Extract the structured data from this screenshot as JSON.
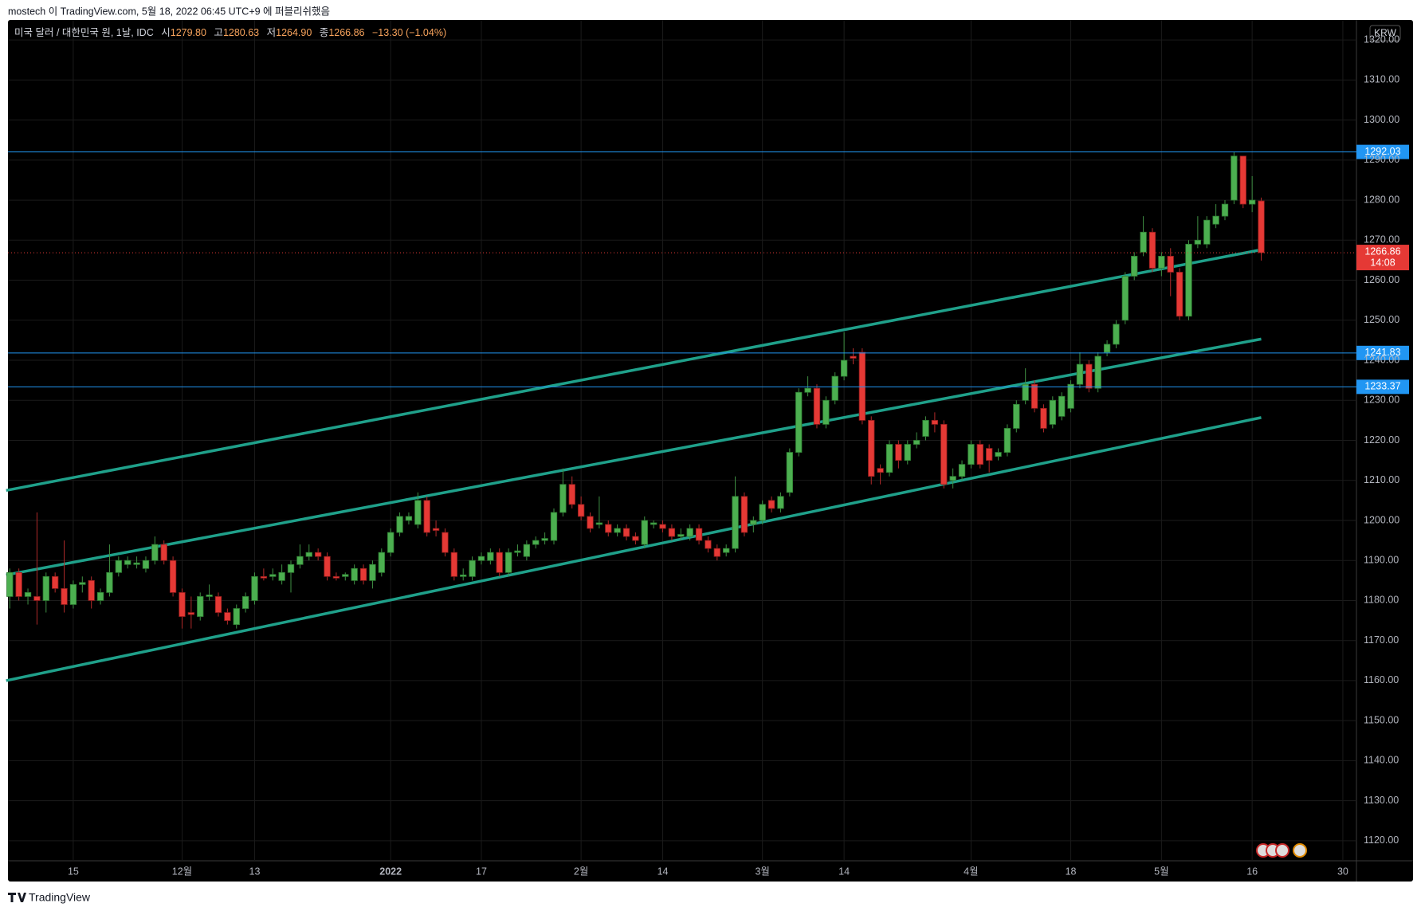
{
  "chart_data": {
    "type": "candlestick",
    "header": "mostech 이 TradingView.com, 5월 18, 2022 06:45 UTC+9 에 퍼블리쉬했음",
    "symbol": "미국 달러 / 대한민국 원, 1날, IDC",
    "legend": {
      "open_prefix": "시",
      "open": "1279.80",
      "high_prefix": "고",
      "high": "1280.63",
      "low_prefix": "저",
      "low": "1264.90",
      "close_prefix": "종",
      "close": "1266.86",
      "change": "−13.30 (−1.04%)"
    },
    "currency": "KRW",
    "footer": "TradingView",
    "up_color": "#4caf50",
    "down_color": "#e53935",
    "ylim": [
      1115,
      1325
    ],
    "yticks": [
      {
        "value": 1120,
        "label": "1120.00"
      },
      {
        "value": 1130,
        "label": "1130.00"
      },
      {
        "value": 1140,
        "label": "1140.00"
      },
      {
        "value": 1150,
        "label": "1150.00"
      },
      {
        "value": 1160,
        "label": "1160.00"
      },
      {
        "value": 1170,
        "label": "1170.00"
      },
      {
        "value": 1180,
        "label": "1180.00"
      },
      {
        "value": 1190,
        "label": "1190.00"
      },
      {
        "value": 1200,
        "label": "1200.00"
      },
      {
        "value": 1210,
        "label": "1210.00"
      },
      {
        "value": 1220,
        "label": "1220.00"
      },
      {
        "value": 1230,
        "label": "1230.00"
      },
      {
        "value": 1240,
        "label": "1240.00"
      },
      {
        "value": 1250,
        "label": "1250.00"
      },
      {
        "value": 1260,
        "label": "1260.00"
      },
      {
        "value": 1270,
        "label": "1270.00"
      },
      {
        "value": 1280,
        "label": "1280.00"
      },
      {
        "value": 1290,
        "label": "1290.00"
      },
      {
        "value": 1300,
        "label": "1300.00"
      },
      {
        "value": 1310,
        "label": "1310.00"
      },
      {
        "value": 1320,
        "label": "1320.00"
      }
    ],
    "xlim": [
      -0.2,
      148.5
    ],
    "xticks": [
      {
        "value": 7,
        "label": "15"
      },
      {
        "value": 19,
        "label": "12월"
      },
      {
        "value": 27,
        "label": "13"
      },
      {
        "value": 42,
        "label": "2022",
        "bold": true
      },
      {
        "value": 52,
        "label": "17"
      },
      {
        "value": 63,
        "label": "2월"
      },
      {
        "value": 72,
        "label": "14"
      },
      {
        "value": 83,
        "label": "3월"
      },
      {
        "value": 92,
        "label": "14"
      },
      {
        "value": 106,
        "label": "4월"
      },
      {
        "value": 117,
        "label": "18"
      },
      {
        "value": 127,
        "label": "5월"
      },
      {
        "value": 137,
        "label": "16"
      },
      {
        "value": 147,
        "label": "30"
      }
    ],
    "grid": true,
    "open": [
      1181,
      1187,
      1181,
      1181,
      1180,
      1186,
      1183,
      1179,
      1184,
      1185,
      1180,
      1182,
      1187,
      1189,
      1189,
      1188,
      1190,
      1194,
      1190,
      1182,
      1177,
      1176,
      1181,
      1181,
      1177,
      1174,
      1178,
      1180,
      1186,
      1186,
      1185,
      1187,
      1189,
      1191,
      1192,
      1191,
      1186,
      1186,
      1185,
      1188,
      1185,
      1187,
      1192,
      1197,
      1200,
      1199,
      1205,
      1198,
      1197,
      1192,
      1186,
      1186,
      1190,
      1190,
      1192,
      1187,
      1192,
      1191,
      1194,
      1195,
      1195,
      1202,
      1209,
      1204,
      1201,
      1199,
      1199,
      1197,
      1198,
      1196,
      1194,
      1199,
      1199,
      1198,
      1196,
      1196,
      1198,
      1195,
      1193,
      1192,
      1193,
      1206,
      1199,
      1200,
      1205,
      1203,
      1207,
      1217,
      1232,
      1233,
      1224,
      1230,
      1236,
      1241,
      1242,
      1225,
      1213,
      1212,
      1219,
      1215,
      1219,
      1221,
      1225,
      1224,
      1210,
      1211,
      1214,
      1219,
      1218,
      1216,
      1217,
      1223,
      1230,
      1234,
      1228,
      1224,
      1226,
      1228,
      1234,
      1239,
      1233,
      1242,
      1244,
      1250,
      1261,
      1267,
      1272,
      1263,
      1266,
      1262,
      1251,
      1269,
      1269,
      1274,
      1276,
      1280,
      1291,
      1279,
      1279.8
    ],
    "close": [
      1187,
      1181,
      1182,
      1180,
      1186,
      1183,
      1179,
      1184,
      1184.5,
      1180,
      1182,
      1187,
      1190,
      1190,
      1189.4,
      1190,
      1194,
      1190,
      1182,
      1176,
      1176.5,
      1181,
      1181.4,
      1177,
      1175,
      1178,
      1181,
      1186,
      1185.6,
      1186.5,
      1187,
      1189,
      1191,
      1192,
      1191,
      1186,
      1185.6,
      1186.5,
      1188,
      1185,
      1189,
      1192,
      1197,
      1201,
      1201,
      1205,
      1197,
      1197.5,
      1192,
      1186,
      1186.4,
      1190,
      1191,
      1192,
      1187,
      1192,
      1192.4,
      1194,
      1195,
      1195.5,
      1202,
      1209,
      1204,
      1201,
      1198,
      1199.4,
      1197,
      1198,
      1196,
      1195,
      1200,
      1199.4,
      1198,
      1196,
      1196.5,
      1198,
      1195,
      1193,
      1191,
      1193,
      1206,
      1197,
      1200,
      1204,
      1203,
      1206,
      1217,
      1232,
      1233,
      1224,
      1230,
      1236,
      1240,
      1240.5,
      1225,
      1211,
      1212,
      1219,
      1215,
      1219,
      1220,
      1225,
      1224,
      1209,
      1211,
      1214,
      1219,
      1214,
      1215,
      1217,
      1223,
      1229,
      1234,
      1228,
      1223,
      1230,
      1231,
      1234,
      1239,
      1233,
      1241,
      1244,
      1249,
      1261,
      1266,
      1272,
      1263,
      1266,
      1262,
      1251,
      1269,
      1270,
      1275,
      1276,
      1279,
      1291,
      1279,
      1280,
      1266.86
    ],
    "high": [
      1188,
      1188,
      1183,
      1202,
      1187,
      1187,
      1195,
      1185,
      1186,
      1186,
      1183,
      1194,
      1191,
      1191,
      1191,
      1191,
      1196,
      1195,
      1191,
      1183,
      1181,
      1182,
      1184,
      1182,
      1178,
      1179,
      1182,
      1187,
      1188,
      1188,
      1189,
      1190,
      1194,
      1194,
      1193,
      1192,
      1187,
      1187,
      1189,
      1189,
      1190,
      1193,
      1198,
      1202,
      1202,
      1207,
      1206,
      1200,
      1198,
      1193,
      1188,
      1191,
      1192,
      1193,
      1193,
      1193,
      1194,
      1195,
      1196,
      1197,
      1203,
      1213,
      1211,
      1206,
      1202,
      1206,
      1200,
      1199,
      1199,
      1197,
      1201,
      1200,
      1200,
      1199,
      1198,
      1199,
      1199,
      1196,
      1194,
      1194,
      1211,
      1207,
      1201,
      1205,
      1206,
      1207,
      1218,
      1233,
      1236,
      1234,
      1231,
      1237,
      1247,
      1243,
      1243,
      1226,
      1214,
      1220,
      1220,
      1220,
      1222,
      1226,
      1227,
      1225,
      1213,
      1215,
      1220,
      1220,
      1219,
      1218,
      1224,
      1230,
      1238,
      1235,
      1229,
      1231,
      1232,
      1235,
      1242,
      1240,
      1242,
      1245,
      1250,
      1262,
      1267,
      1276,
      1273,
      1267,
      1268,
      1263,
      1270,
      1276,
      1276,
      1279,
      1280,
      1292,
      1291,
      1286,
      1280.63
    ],
    "low": [
      1178,
      1180,
      1179,
      1174,
      1177,
      1182,
      1177,
      1178,
      1182,
      1178,
      1179,
      1181,
      1186,
      1188,
      1188,
      1187,
      1189,
      1189,
      1181,
      1173,
      1173,
      1175,
      1180,
      1176,
      1174,
      1173,
      1177,
      1179,
      1185,
      1185,
      1184,
      1182,
      1188,
      1190,
      1190,
      1185,
      1185,
      1185,
      1184,
      1184,
      1183,
      1186,
      1191,
      1196,
      1199,
      1198,
      1196,
      1196,
      1191,
      1185,
      1185,
      1185,
      1189,
      1189,
      1186,
      1186,
      1191,
      1190,
      1193,
      1194,
      1194,
      1201,
      1203,
      1200,
      1197,
      1198,
      1196,
      1196,
      1195,
      1194,
      1193,
      1198,
      1197,
      1195,
      1195,
      1195,
      1194,
      1192,
      1190,
      1191,
      1192,
      1196,
      1197,
      1199,
      1202,
      1202,
      1206,
      1216,
      1231,
      1223,
      1223,
      1229,
      1235,
      1239,
      1224,
      1209,
      1209,
      1211,
      1213,
      1214,
      1218,
      1220,
      1222,
      1208,
      1208,
      1210,
      1213,
      1213,
      1212,
      1215,
      1216,
      1222,
      1229,
      1227,
      1222,
      1223,
      1225,
      1227,
      1233,
      1232,
      1232,
      1241,
      1243,
      1249,
      1260,
      1266,
      1262,
      1261,
      1256,
      1250,
      1250,
      1268,
      1268,
      1273,
      1275,
      1279,
      1278,
      1277,
      1264.9
    ],
    "price_lines": [
      {
        "value": 1292.03,
        "color": "#2196f3"
      },
      {
        "value": 1241.83,
        "color": "#2196f3"
      },
      {
        "value": 1233.37,
        "color": "#2196f3"
      }
    ],
    "last_price": {
      "value": 1266.86,
      "countdown": "14:08",
      "color": "#e53935"
    },
    "trend_lines": [
      {
        "x": [
          -0.4,
          138
        ],
        "y": [
          1207.5,
          1267.6
        ]
      },
      {
        "x": [
          -0.4,
          138
        ],
        "y": [
          1186.4,
          1245.3
        ]
      },
      {
        "x": [
          -0.4,
          138
        ],
        "y": [
          1160.0,
          1225.7
        ]
      }
    ],
    "trend_color": "#1fa08a"
  }
}
